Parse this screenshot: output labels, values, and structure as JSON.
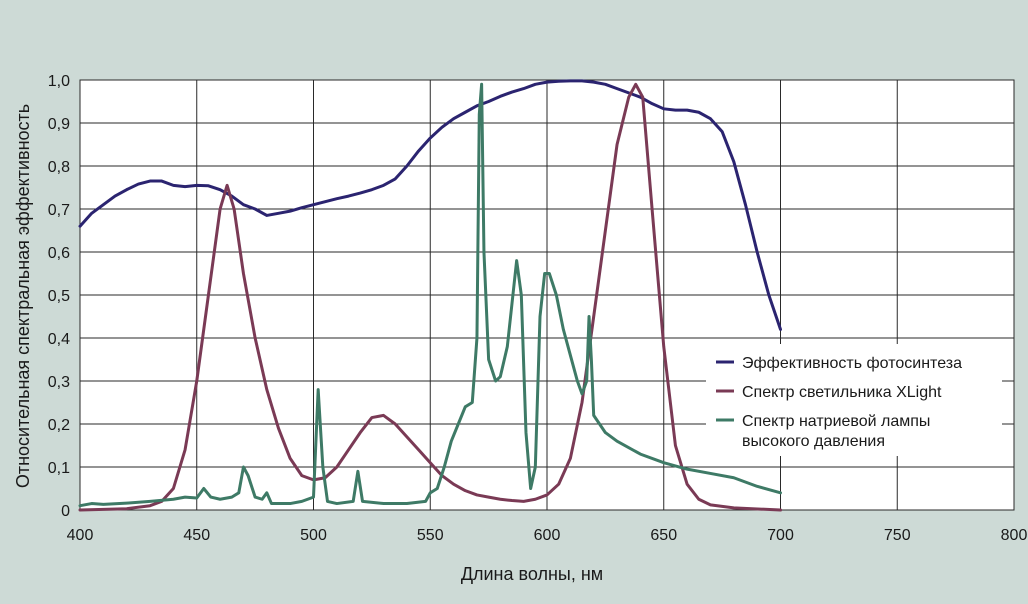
{
  "chart_data": {
    "type": "line",
    "xlabel": "Длина волны, нм",
    "ylabel": "Относительная спектральная эффективность",
    "xlim": [
      400,
      800
    ],
    "ylim": [
      0,
      1.0
    ],
    "x_ticks": [
      400,
      450,
      500,
      550,
      600,
      650,
      700,
      750,
      800
    ],
    "y_ticks": [
      0,
      0.1,
      0.2,
      0.3,
      0.4,
      0.5,
      0.6,
      0.7,
      0.8,
      0.9,
      1.0
    ],
    "y_tick_labels": [
      "0",
      "0,1",
      "0,2",
      "0,3",
      "0,4",
      "0,5",
      "0,6",
      "0,7",
      "0,8",
      "0,9",
      "1,0"
    ],
    "grid": true,
    "legend_position": "right",
    "series": [
      {
        "name": "Эффективность фотосинтеза",
        "color": "#2b2470",
        "legend_lines": [
          "Эффективность фотосинтеза"
        ],
        "points": [
          [
            400,
            0.66
          ],
          [
            405,
            0.69
          ],
          [
            410,
            0.71
          ],
          [
            415,
            0.73
          ],
          [
            420,
            0.745
          ],
          [
            425,
            0.758
          ],
          [
            430,
            0.765
          ],
          [
            435,
            0.765
          ],
          [
            440,
            0.755
          ],
          [
            445,
            0.752
          ],
          [
            450,
            0.755
          ],
          [
            455,
            0.754
          ],
          [
            460,
            0.745
          ],
          [
            465,
            0.73
          ],
          [
            470,
            0.71
          ],
          [
            475,
            0.7
          ],
          [
            480,
            0.685
          ],
          [
            485,
            0.69
          ],
          [
            490,
            0.695
          ],
          [
            495,
            0.703
          ],
          [
            500,
            0.71
          ],
          [
            505,
            0.717
          ],
          [
            510,
            0.724
          ],
          [
            515,
            0.73
          ],
          [
            520,
            0.737
          ],
          [
            525,
            0.745
          ],
          [
            530,
            0.755
          ],
          [
            535,
            0.77
          ],
          [
            540,
            0.8
          ],
          [
            545,
            0.835
          ],
          [
            550,
            0.865
          ],
          [
            555,
            0.89
          ],
          [
            560,
            0.91
          ],
          [
            565,
            0.925
          ],
          [
            570,
            0.94
          ],
          [
            575,
            0.95
          ],
          [
            580,
            0.962
          ],
          [
            585,
            0.972
          ],
          [
            590,
            0.98
          ],
          [
            595,
            0.99
          ],
          [
            600,
            0.995
          ],
          [
            605,
            0.997
          ],
          [
            610,
            0.998
          ],
          [
            615,
            0.998
          ],
          [
            620,
            0.995
          ],
          [
            625,
            0.99
          ],
          [
            630,
            0.98
          ],
          [
            635,
            0.97
          ],
          [
            640,
            0.96
          ],
          [
            645,
            0.945
          ],
          [
            650,
            0.933
          ],
          [
            655,
            0.93
          ],
          [
            660,
            0.93
          ],
          [
            665,
            0.925
          ],
          [
            670,
            0.91
          ],
          [
            675,
            0.88
          ],
          [
            680,
            0.81
          ],
          [
            685,
            0.71
          ],
          [
            690,
            0.6
          ],
          [
            695,
            0.5
          ],
          [
            700,
            0.42
          ]
        ]
      },
      {
        "name": "Спектр светильника XLight",
        "color": "#7a3a55",
        "legend_lines": [
          "Спектр светильника XLight"
        ],
        "points": [
          [
            400,
            0.0
          ],
          [
            420,
            0.003
          ],
          [
            430,
            0.01
          ],
          [
            435,
            0.02
          ],
          [
            440,
            0.05
          ],
          [
            445,
            0.14
          ],
          [
            450,
            0.3
          ],
          [
            455,
            0.5
          ],
          [
            460,
            0.7
          ],
          [
            463,
            0.755
          ],
          [
            466,
            0.7
          ],
          [
            470,
            0.55
          ],
          [
            475,
            0.4
          ],
          [
            480,
            0.28
          ],
          [
            485,
            0.19
          ],
          [
            490,
            0.12
          ],
          [
            495,
            0.08
          ],
          [
            500,
            0.07
          ],
          [
            505,
            0.075
          ],
          [
            510,
            0.1
          ],
          [
            515,
            0.14
          ],
          [
            520,
            0.18
          ],
          [
            525,
            0.215
          ],
          [
            530,
            0.22
          ],
          [
            535,
            0.2
          ],
          [
            540,
            0.17
          ],
          [
            545,
            0.14
          ],
          [
            550,
            0.11
          ],
          [
            555,
            0.08
          ],
          [
            560,
            0.06
          ],
          [
            565,
            0.045
          ],
          [
            570,
            0.035
          ],
          [
            575,
            0.03
          ],
          [
            580,
            0.025
          ],
          [
            585,
            0.022
          ],
          [
            590,
            0.02
          ],
          [
            595,
            0.025
          ],
          [
            600,
            0.035
          ],
          [
            605,
            0.06
          ],
          [
            610,
            0.12
          ],
          [
            615,
            0.25
          ],
          [
            620,
            0.45
          ],
          [
            625,
            0.65
          ],
          [
            630,
            0.85
          ],
          [
            635,
            0.96
          ],
          [
            638,
            0.99
          ],
          [
            641,
            0.96
          ],
          [
            645,
            0.7
          ],
          [
            650,
            0.38
          ],
          [
            655,
            0.15
          ],
          [
            660,
            0.06
          ],
          [
            665,
            0.025
          ],
          [
            670,
            0.012
          ],
          [
            680,
            0.005
          ],
          [
            700,
            0.0
          ]
        ]
      },
      {
        "name": "Спектр натриевой лампы высокого давления",
        "color": "#3e7a66",
        "legend_lines": [
          "Спектр натриевой лампы",
          "высокого давления"
        ],
        "points": [
          [
            400,
            0.01
          ],
          [
            405,
            0.015
          ],
          [
            410,
            0.013
          ],
          [
            420,
            0.016
          ],
          [
            430,
            0.02
          ],
          [
            440,
            0.025
          ],
          [
            445,
            0.03
          ],
          [
            450,
            0.028
          ],
          [
            453,
            0.05
          ],
          [
            456,
            0.03
          ],
          [
            460,
            0.025
          ],
          [
            465,
            0.03
          ],
          [
            468,
            0.04
          ],
          [
            470,
            0.1
          ],
          [
            472,
            0.08
          ],
          [
            475,
            0.03
          ],
          [
            478,
            0.025
          ],
          [
            480,
            0.04
          ],
          [
            482,
            0.015
          ],
          [
            490,
            0.015
          ],
          [
            495,
            0.02
          ],
          [
            500,
            0.03
          ],
          [
            502,
            0.28
          ],
          [
            504,
            0.1
          ],
          [
            506,
            0.02
          ],
          [
            510,
            0.015
          ],
          [
            517,
            0.02
          ],
          [
            519,
            0.09
          ],
          [
            521,
            0.02
          ],
          [
            530,
            0.015
          ],
          [
            540,
            0.015
          ],
          [
            548,
            0.02
          ],
          [
            550,
            0.04
          ],
          [
            553,
            0.05
          ],
          [
            556,
            0.1
          ],
          [
            559,
            0.16
          ],
          [
            562,
            0.2
          ],
          [
            565,
            0.24
          ],
          [
            568,
            0.25
          ],
          [
            570,
            0.4
          ],
          [
            571,
            0.92
          ],
          [
            572,
            0.99
          ],
          [
            573,
            0.6
          ],
          [
            575,
            0.35
          ],
          [
            578,
            0.3
          ],
          [
            580,
            0.31
          ],
          [
            583,
            0.38
          ],
          [
            585,
            0.48
          ],
          [
            587,
            0.58
          ],
          [
            589,
            0.5
          ],
          [
            591,
            0.18
          ],
          [
            593,
            0.05
          ],
          [
            595,
            0.1
          ],
          [
            597,
            0.45
          ],
          [
            599,
            0.55
          ],
          [
            601,
            0.55
          ],
          [
            604,
            0.5
          ],
          [
            607,
            0.42
          ],
          [
            610,
            0.36
          ],
          [
            613,
            0.3
          ],
          [
            615,
            0.27
          ],
          [
            617,
            0.3
          ],
          [
            618,
            0.45
          ],
          [
            619,
            0.35
          ],
          [
            620,
            0.22
          ],
          [
            625,
            0.18
          ],
          [
            630,
            0.16
          ],
          [
            640,
            0.13
          ],
          [
            650,
            0.11
          ],
          [
            660,
            0.095
          ],
          [
            670,
            0.085
          ],
          [
            680,
            0.075
          ],
          [
            690,
            0.055
          ],
          [
            700,
            0.04
          ]
        ]
      }
    ]
  }
}
